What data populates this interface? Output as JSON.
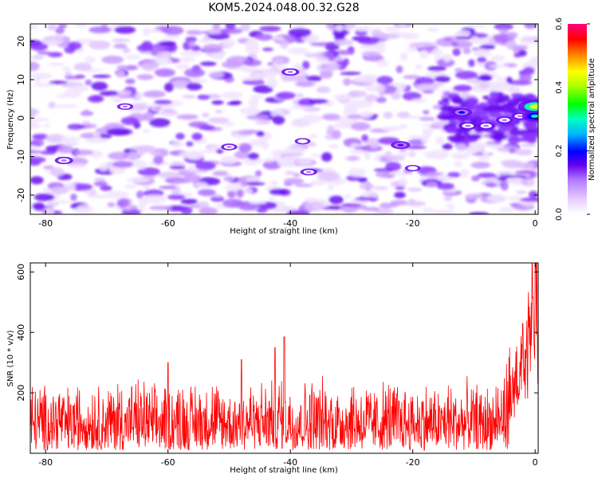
{
  "title": "KOM5.2024.048.00.32.G28",
  "chart_data": [
    {
      "type": "heatmap",
      "xlabel": "Height of straight line (km)",
      "ylabel": "Frequency (Hz)",
      "xlim": [
        -82.5,
        0.5
      ],
      "ylim": [
        -25,
        24.5
      ],
      "xticks": [
        -80,
        -60,
        -40,
        -20,
        0
      ],
      "yticks": [
        -20,
        -10,
        0,
        10,
        20
      ],
      "colorbar": {
        "label": "Normalized spectral amplitude",
        "range": [
          0,
          0.6
        ],
        "ticks": [
          "0.0",
          "0.2",
          "0.4",
          "0.6"
        ],
        "palette": [
          "#ffffff",
          "#d9b8ff",
          "#9a4dff",
          "#6200ee",
          "#0000ff",
          "#00c8ff",
          "#00ff40",
          "#ffff00",
          "#ff8000",
          "#ff0000",
          "#ff0080"
        ]
      },
      "hotspots": [
        {
          "x": -12,
          "y": 1.5,
          "value": 0.2
        },
        {
          "x": -11,
          "y": -2,
          "value": 0.15
        },
        {
          "x": -8,
          "y": -2,
          "value": 0.14
        },
        {
          "x": -5,
          "y": -0.5,
          "value": 0.13
        },
        {
          "x": -2.5,
          "y": 0.5,
          "value": 0.12
        },
        {
          "x": 0,
          "y": 3,
          "value": 0.45
        },
        {
          "x": 0,
          "y": 0.5,
          "value": 0.3
        },
        {
          "x": -22,
          "y": -7,
          "value": 0.17
        },
        {
          "x": -77,
          "y": -11,
          "value": 0.15
        },
        {
          "x": -40,
          "y": 12,
          "value": 0.14
        },
        {
          "x": -37,
          "y": -14,
          "value": 0.12
        },
        {
          "x": -50,
          "y": -7.5,
          "value": 0.11
        },
        {
          "x": -67,
          "y": 3,
          "value": 0.11
        },
        {
          "x": -38,
          "y": -6,
          "value": 0.1
        },
        {
          "x": -20,
          "y": -13,
          "value": 0.1
        }
      ]
    },
    {
      "type": "line",
      "xlabel": "Height of straight line (km)",
      "ylabel": "SNR (10 * v/v)",
      "xlim": [
        -82.5,
        0.5
      ],
      "ylim": [
        0,
        630
      ],
      "xticks": [
        -80,
        -60,
        -40,
        -20,
        0
      ],
      "yticks": [
        200,
        400,
        600
      ],
      "color": "#ff0000",
      "series": [
        {
          "x": [
            -82.5,
            -80,
            -78,
            -76,
            -74,
            -72,
            -70,
            -68,
            -66,
            -64,
            -62,
            -60,
            -58,
            -56,
            -54,
            -52,
            -50,
            -48,
            -46,
            -44,
            -42,
            -40,
            -38,
            -36,
            -34,
            -32,
            -30,
            -28,
            -26,
            -24,
            -22,
            -20,
            -18,
            -16,
            -14,
            -12,
            -10,
            -8,
            -6,
            -5,
            -4,
            -3.5,
            -3,
            -2.5,
            -2,
            -1.5,
            -1,
            -0.5,
            0,
            0.5
          ],
          "y": [
            110,
            105,
            120,
            100,
            115,
            110,
            105,
            120,
            110,
            115,
            100,
            118,
            112,
            108,
            120,
            110,
            105,
            118,
            112,
            108,
            125,
            115,
            110,
            120,
            112,
            108,
            118,
            110,
            105,
            115,
            112,
            108,
            110,
            105,
            112,
            108,
            110,
            105,
            115,
            130,
            180,
            240,
            300,
            260,
            340,
            300,
            420,
            380,
            520,
            460
          ]
        }
      ],
      "noise_envelope": {
        "lower": 10,
        "typical_peak": 260,
        "max_peaks": [
          {
            "x": -42.5,
            "y": 350
          },
          {
            "x": -41,
            "y": 385
          },
          {
            "x": -60,
            "y": 300
          },
          {
            "x": -48,
            "y": 310
          },
          {
            "x": -2,
            "y": 430
          },
          {
            "x": -0.5,
            "y": 635
          }
        ]
      }
    }
  ]
}
